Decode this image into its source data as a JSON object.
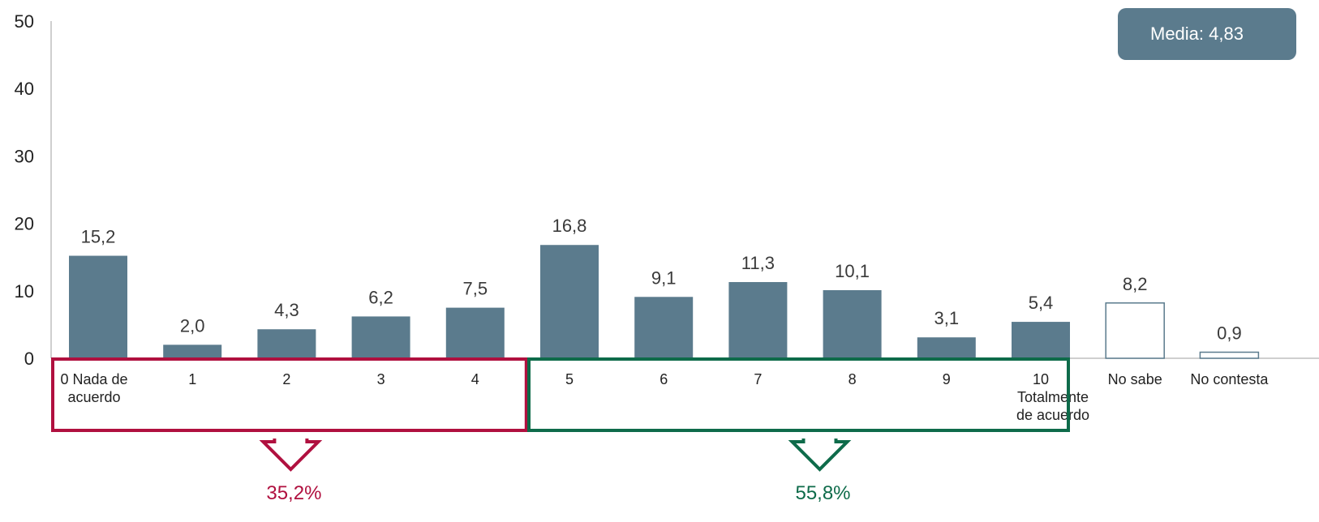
{
  "chart_data": {
    "type": "bar",
    "categories": [
      [
        "0 Nada de",
        "acuerdo"
      ],
      [
        "1"
      ],
      [
        "2"
      ],
      [
        "3"
      ],
      [
        "4"
      ],
      [
        "5"
      ],
      [
        "6"
      ],
      [
        "7"
      ],
      [
        "8"
      ],
      [
        "9"
      ],
      [
        "10",
        "Totalmente",
        "de acuerdo"
      ],
      [
        "No sabe"
      ],
      [
        "No contesta"
      ]
    ],
    "values": [
      15.2,
      2.0,
      4.3,
      6.2,
      7.5,
      16.8,
      9.1,
      11.3,
      10.1,
      3.1,
      5.4,
      8.2,
      0.9
    ],
    "data_labels": [
      "15,2",
      "2,0",
      "4,3",
      "6,2",
      "7,5",
      "16,8",
      "9,1",
      "11,3",
      "10,1",
      "3,1",
      "5,4",
      "8,2",
      "0,9"
    ],
    "outline_bars": [
      11,
      12
    ],
    "ylim": [
      0,
      50
    ],
    "yticks": [
      "0",
      "10",
      "20",
      "30",
      "40",
      "50"
    ],
    "xlabel": "",
    "ylabel": "",
    "grid": false,
    "colors": {
      "bar": "#5b7b8d",
      "outline": "#5b7b8d",
      "red": "#b0103f",
      "green": "#0e6b4a"
    },
    "groups": [
      {
        "from": 0,
        "to": 4,
        "label": "35,2%",
        "color": "#b0103f"
      },
      {
        "from": 5,
        "to": 10,
        "label": "55,8%",
        "color": "#0e6b4a"
      }
    ],
    "mean_label": "Media: 4,83"
  }
}
